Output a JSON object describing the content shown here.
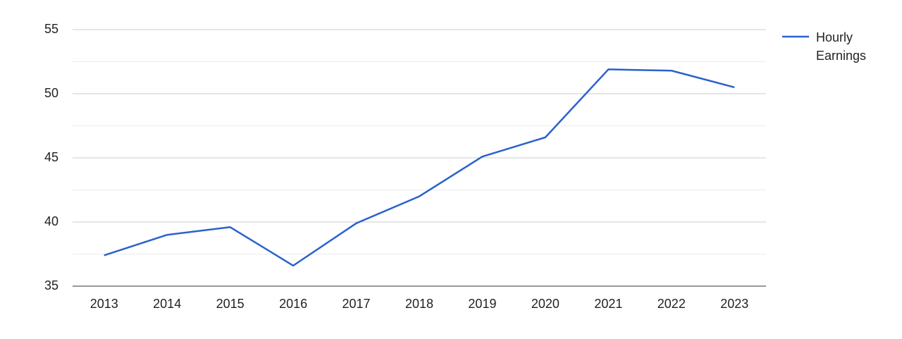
{
  "chart_data": {
    "type": "line",
    "categories": [
      "2013",
      "2014",
      "2015",
      "2016",
      "2017",
      "2018",
      "2019",
      "2020",
      "2021",
      "2022",
      "2023"
    ],
    "series": [
      {
        "name": "Hourly Earnings",
        "color": "#2a62cc",
        "values": [
          37.4,
          39.0,
          39.6,
          36.6,
          39.9,
          42.0,
          45.1,
          46.6,
          51.9,
          51.8,
          50.5
        ]
      }
    ],
    "ylim": [
      35,
      55
    ],
    "yticks": [
      35,
      40,
      45,
      50,
      55
    ],
    "minor_yticks": [
      37.5,
      42.5,
      47.5,
      52.5
    ],
    "grid": true,
    "legend": "right"
  }
}
